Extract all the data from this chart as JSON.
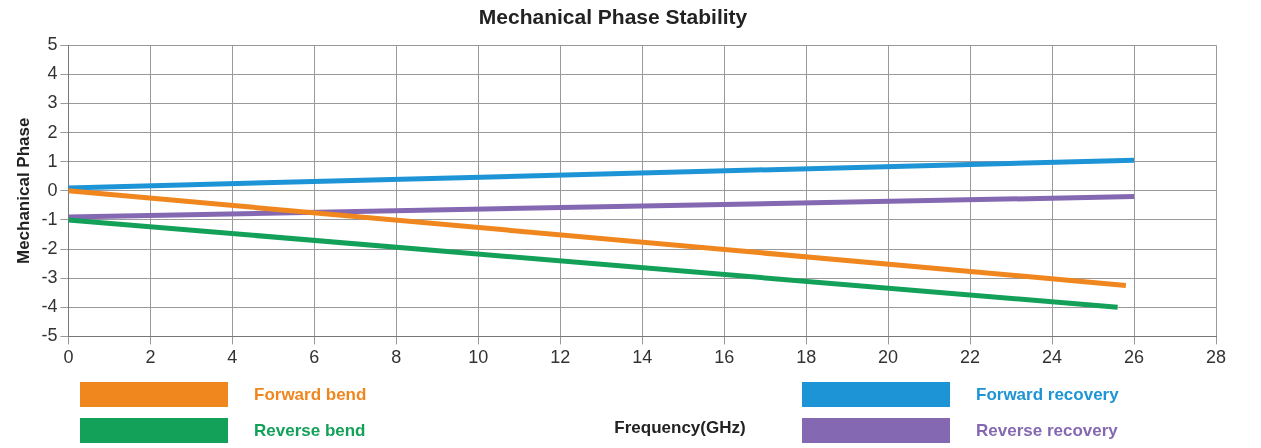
{
  "chart_data": {
    "type": "line",
    "title": "Mechanical Phase Stability",
    "xlabel": "Frequency(GHz)",
    "ylabel": "Mechanical Phase",
    "series": [
      {
        "name": "Forward bend",
        "color": "#f0861e",
        "x": [
          0,
          25.8
        ],
        "values": [
          0,
          -3.25
        ]
      },
      {
        "name": "Reverse bend",
        "color": "#13a15a",
        "x": [
          0,
          25.6
        ],
        "values": [
          -1,
          -4
        ]
      },
      {
        "name": "Forward recovery",
        "color": "#1d94d6",
        "x": [
          0,
          26
        ],
        "values": [
          0.1,
          1.05
        ]
      },
      {
        "name": "Reverse recovery",
        "color": "#8468b2",
        "x": [
          0,
          26
        ],
        "values": [
          -0.9,
          -0.2
        ]
      }
    ],
    "xlim": [
      0,
      28
    ],
    "xticks": [
      0,
      2,
      4,
      6,
      8,
      10,
      12,
      14,
      16,
      18,
      20,
      22,
      24,
      26,
      28
    ],
    "ylim": [
      -5,
      5
    ],
    "yticks": [
      -5,
      -4,
      -3,
      -2,
      -1,
      0,
      1,
      2,
      3,
      4,
      5
    ],
    "grid": true,
    "legend": "bottom",
    "marker": "none",
    "line_style": "solid"
  }
}
